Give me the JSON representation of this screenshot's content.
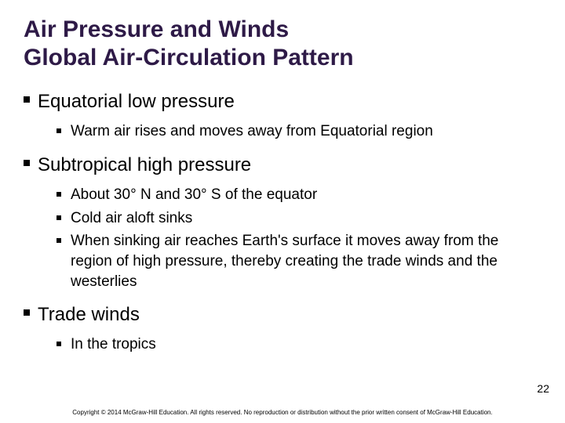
{
  "title_line1": "Air Pressure and Winds",
  "title_line2": "Global Air-Circulation Pattern",
  "sections": [
    {
      "heading": "Equatorial low pressure",
      "items": [
        "Warm air rises and moves away from Equatorial region"
      ]
    },
    {
      "heading": "Subtropical high pressure",
      "items": [
        "About 30° N and 30° S of the equator",
        "Cold air aloft sinks",
        "When sinking air reaches Earth's surface it moves away from the region of high pressure, thereby creating the trade winds and the westerlies"
      ]
    },
    {
      "heading": "Trade winds",
      "items": [
        "In the tropics"
      ]
    }
  ],
  "page_number": "22",
  "copyright": "Copyright © 2014 McGraw-Hill Education. All rights reserved. No reproduction or distribution without the prior written consent of McGraw-Hill Education.",
  "colors": {
    "title": "#2e1a47",
    "text": "#000000",
    "background": "#ffffff"
  },
  "fonts": {
    "title_size": 30,
    "heading_size": 24,
    "body_size": 19
  }
}
